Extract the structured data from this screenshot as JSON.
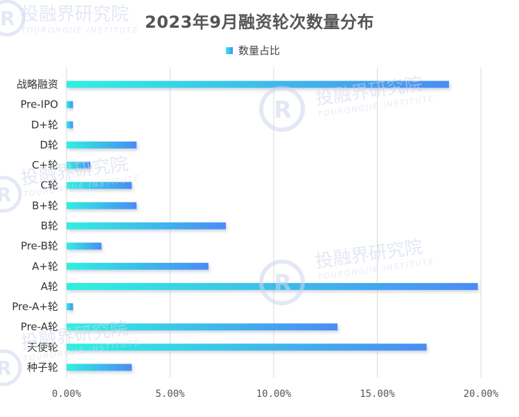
{
  "chart_data": {
    "type": "bar",
    "orientation": "horizontal",
    "title": "2023年9月融资轮次数量分布",
    "categories": [
      "战略融资",
      "Pre-IPO",
      "D+轮",
      "D轮",
      "C+轮",
      "C轮",
      "B+轮",
      "B轮",
      "Pre-B轮",
      "A+轮",
      "A轮",
      "Pre-A+轮",
      "Pre-A轮",
      "天使轮",
      "种子轮"
    ],
    "series": [
      {
        "name": "数量占比",
        "values": [
          18.46,
          0.31,
          0.31,
          3.38,
          1.15,
          3.15,
          3.38,
          7.69,
          1.69,
          6.85,
          19.85,
          0.31,
          13.08,
          17.38,
          3.15
        ]
      }
    ],
    "xlim": [
      0,
      20
    ],
    "xticks": [
      "0.00%",
      "5.00%",
      "10.00%",
      "15.00%",
      "20.00%"
    ],
    "xtick_values": [
      0,
      5,
      10,
      15,
      20
    ],
    "grid": "vertical",
    "legend_position": "top-center",
    "bar_colors": [
      "#2ff0e0",
      "#4a8cf5"
    ]
  },
  "watermark": {
    "text": "投融界研究院",
    "subtext": "TOURONGJIE INSTITUTE"
  }
}
